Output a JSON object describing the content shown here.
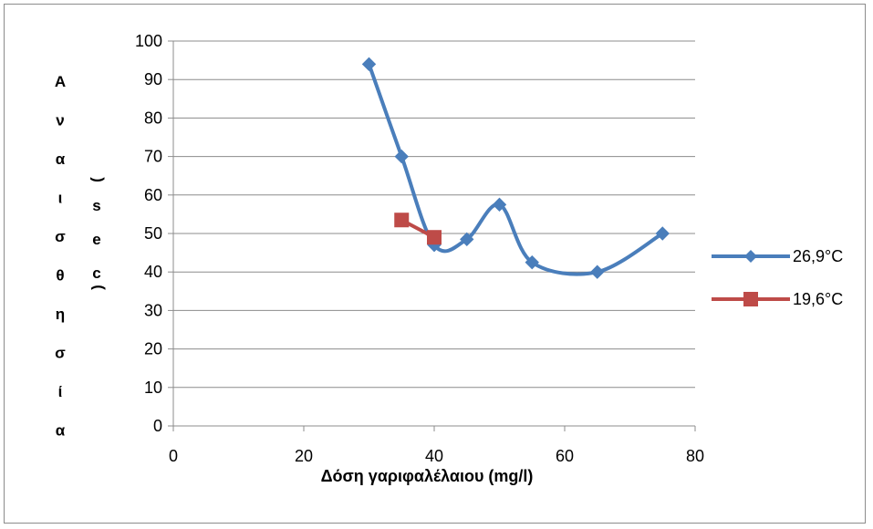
{
  "chart_data": {
    "type": "scatter",
    "title": "",
    "xlabel": "Δόση γαριφαλέλαιου (mg/l)",
    "ylabel": "Αναισθησία",
    "ylabel_unit": "(sec)",
    "xlim": [
      0,
      80
    ],
    "ylim": [
      0,
      100
    ],
    "xticks": [
      0,
      20,
      40,
      60,
      80
    ],
    "yticks": [
      0,
      10,
      20,
      30,
      40,
      50,
      60,
      70,
      80,
      90,
      100
    ],
    "grid": "horizontal",
    "smooth_lines": true,
    "legend_position": "right",
    "series": [
      {
        "name": "26,9°C",
        "color": "#4a7ebb",
        "marker": "diamond",
        "x": [
          30,
          35,
          40,
          45,
          50,
          55,
          65,
          75
        ],
        "y": [
          94,
          70,
          47,
          48.5,
          57.5,
          42.5,
          40,
          50
        ]
      },
      {
        "name": "19,6°C",
        "color": "#be4b48",
        "marker": "square",
        "x": [
          35,
          40
        ],
        "y": [
          53.5,
          49
        ]
      }
    ]
  }
}
